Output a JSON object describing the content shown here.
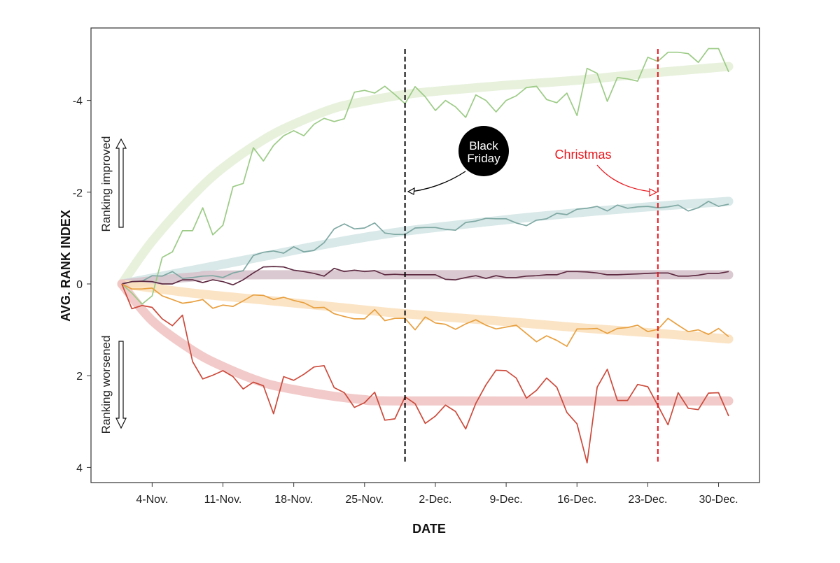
{
  "chart_data": {
    "type": "line",
    "xlabel": "DATE",
    "ylabel": "AVG. RANK INDEX",
    "ylim": [
      4.33,
      -5.58
    ],
    "y_inverted": true,
    "xlim": [
      "29-Oct",
      "2-Jan"
    ],
    "grid": false,
    "legend": "none",
    "yticks": [
      {
        "value": -4,
        "label": "-4"
      },
      {
        "value": -2,
        "label": "-2"
      },
      {
        "value": 0,
        "label": "0"
      },
      {
        "value": 2,
        "label": "2"
      },
      {
        "value": 4,
        "label": "4"
      }
    ],
    "xticks": [
      {
        "date": "4-Nov",
        "label": "4-Nov."
      },
      {
        "date": "11-Nov",
        "label": "11-Nov."
      },
      {
        "date": "18-Nov",
        "label": "18-Nov."
      },
      {
        "date": "25-Nov",
        "label": "25-Nov."
      },
      {
        "date": "2-Dec",
        "label": "2-Dec."
      },
      {
        "date": "9-Dec",
        "label": "9-Dec."
      },
      {
        "date": "16-Dec",
        "label": "16-Dec."
      },
      {
        "date": "23-Dec",
        "label": "23-Dec."
      },
      {
        "date": "30-Dec",
        "label": "30-Dec."
      }
    ],
    "x": [
      "1-Nov",
      "2-Nov",
      "3-Nov",
      "4-Nov",
      "5-Nov",
      "6-Nov",
      "7-Nov",
      "8-Nov",
      "9-Nov",
      "10-Nov",
      "11-Nov",
      "12-Nov",
      "13-Nov",
      "14-Nov",
      "15-Nov",
      "16-Nov",
      "17-Nov",
      "18-Nov",
      "19-Nov",
      "20-Nov",
      "21-Nov",
      "22-Nov",
      "23-Nov",
      "24-Nov",
      "25-Nov",
      "26-Nov",
      "27-Nov",
      "28-Nov",
      "29-Nov",
      "30-Nov",
      "1-Dec",
      "2-Dec",
      "3-Dec",
      "4-Dec",
      "5-Dec",
      "6-Dec",
      "7-Dec",
      "8-Dec",
      "9-Dec",
      "10-Dec",
      "11-Dec",
      "12-Dec",
      "13-Dec",
      "14-Dec",
      "15-Dec",
      "16-Dec",
      "17-Dec",
      "18-Dec",
      "19-Dec",
      "20-Dec",
      "21-Dec",
      "22-Dec",
      "23-Dec",
      "24-Dec",
      "25-Dec",
      "26-Dec",
      "27-Dec",
      "28-Dec",
      "29-Dec",
      "30-Dec",
      "31-Dec"
    ],
    "series": [
      {
        "color": "#9ccb86",
        "trend_color": "#e4efd8",
        "values": [
          0,
          0.2,
          0.44,
          0.26,
          -0.58,
          -0.7,
          -1.16,
          -1.16,
          -1.66,
          -1.07,
          -1.28,
          -2.12,
          -2.19,
          -2.97,
          -2.68,
          -3.02,
          -3.23,
          -3.34,
          -3.23,
          -3.48,
          -3.61,
          -3.54,
          -3.6,
          -4.18,
          -4.22,
          -4.16,
          -4.31,
          -4.13,
          -3.93,
          -4.3,
          -4.08,
          -3.78,
          -4.0,
          -3.86,
          -3.63,
          -4.12,
          -4.0,
          -3.75,
          -4.0,
          -4.1,
          -4.28,
          -4.31,
          -4.02,
          -3.95,
          -4.16,
          -3.67,
          -4.7,
          -4.59,
          -3.98,
          -4.5,
          -4.47,
          -4.42,
          -4.94,
          -4.85,
          -5.05,
          -5.05,
          -5.02,
          -4.83,
          -5.13,
          -5.13,
          -4.62
        ],
        "trend": [
          {
            "x": "1-Nov",
            "y": 0
          },
          {
            "x": "4-Nov",
            "y": -0.93
          },
          {
            "x": "8-Nov",
            "y": -1.92
          },
          {
            "x": "11-Nov",
            "y": -2.53
          },
          {
            "x": "15-Nov",
            "y": -3.14
          },
          {
            "x": "18-Nov",
            "y": -3.48
          },
          {
            "x": "22-Nov",
            "y": -3.83
          },
          {
            "x": "25-Nov",
            "y": -3.98
          },
          {
            "x": "29-Nov",
            "y": -4.13
          },
          {
            "x": "2-Dec",
            "y": -4.2
          },
          {
            "x": "9-Dec",
            "y": -4.33
          },
          {
            "x": "16-Dec",
            "y": -4.44
          },
          {
            "x": "23-Dec",
            "y": -4.59
          },
          {
            "x": "31-Dec",
            "y": -4.74
          }
        ]
      },
      {
        "color": "#7ea8a3",
        "trend_color": "#d5e6e6",
        "values": [
          0,
          -0.05,
          -0.06,
          -0.18,
          -0.17,
          -0.27,
          -0.12,
          -0.14,
          -0.17,
          -0.18,
          -0.14,
          -0.24,
          -0.29,
          -0.62,
          -0.69,
          -0.72,
          -0.67,
          -0.81,
          -0.7,
          -0.73,
          -0.9,
          -1.2,
          -1.31,
          -1.2,
          -1.22,
          -1.33,
          -1.11,
          -1.08,
          -1.08,
          -1.22,
          -1.23,
          -1.23,
          -1.19,
          -1.17,
          -1.34,
          -1.37,
          -1.43,
          -1.42,
          -1.42,
          -1.33,
          -1.27,
          -1.39,
          -1.42,
          -1.54,
          -1.51,
          -1.63,
          -1.65,
          -1.69,
          -1.59,
          -1.72,
          -1.65,
          -1.68,
          -1.69,
          -1.66,
          -1.68,
          -1.72,
          -1.59,
          -1.66,
          -1.8,
          -1.69,
          -1.74
        ],
        "trend": [
          {
            "x": "1-Nov",
            "y": 0
          },
          {
            "x": "8-Nov",
            "y": -0.3
          },
          {
            "x": "15-Nov",
            "y": -0.6
          },
          {
            "x": "22-Nov",
            "y": -0.9
          },
          {
            "x": "29-Nov",
            "y": -1.15
          },
          {
            "x": "9-Dec",
            "y": -1.4
          },
          {
            "x": "16-Dec",
            "y": -1.55
          },
          {
            "x": "23-Dec",
            "y": -1.68
          },
          {
            "x": "31-Dec",
            "y": -1.8
          }
        ]
      },
      {
        "color": "#5e2b42",
        "trend_color": "#d6c3cb",
        "values": [
          0,
          -0.05,
          -0.06,
          -0.05,
          0,
          0,
          -0.09,
          -0.09,
          -0.03,
          -0.09,
          -0.05,
          0.02,
          -0.09,
          -0.24,
          -0.37,
          -0.38,
          -0.37,
          -0.3,
          -0.27,
          -0.23,
          -0.17,
          -0.34,
          -0.27,
          -0.3,
          -0.27,
          -0.29,
          -0.2,
          -0.21,
          -0.2,
          -0.2,
          -0.2,
          -0.2,
          -0.1,
          -0.09,
          -0.14,
          -0.18,
          -0.12,
          -0.18,
          -0.14,
          -0.14,
          -0.17,
          -0.18,
          -0.2,
          -0.2,
          -0.27,
          -0.27,
          -0.26,
          -0.24,
          -0.2,
          -0.2,
          -0.21,
          -0.22,
          -0.23,
          -0.24,
          -0.24,
          -0.17,
          -0.17,
          -0.19,
          -0.23,
          -0.23,
          -0.27
        ],
        "trend": [
          {
            "x": "1-Nov",
            "y": 0
          },
          {
            "x": "8-Nov",
            "y": -0.15
          },
          {
            "x": "15-Nov",
            "y": -0.2
          },
          {
            "x": "31-Dec",
            "y": -0.2
          }
        ]
      },
      {
        "color": "#e8a040",
        "trend_color": "#fbe1bf",
        "values": [
          0,
          0.11,
          0.11,
          0.09,
          0.26,
          0.34,
          0.42,
          0.39,
          0.34,
          0.53,
          0.46,
          0.49,
          0.37,
          0.24,
          0.25,
          0.34,
          0.29,
          0.36,
          0.41,
          0.52,
          0.51,
          0.65,
          0.71,
          0.76,
          0.76,
          0.56,
          0.8,
          0.75,
          0.75,
          1.0,
          0.72,
          0.85,
          0.88,
          0.99,
          0.87,
          0.78,
          0.9,
          0.98,
          0.94,
          0.9,
          1.08,
          1.26,
          1.13,
          1.23,
          1.36,
          0.98,
          0.98,
          0.97,
          1.08,
          0.97,
          0.95,
          0.9,
          1.04,
          0.99,
          0.75,
          0.9,
          1.04,
          1.0,
          1.1,
          0.97,
          1.15
        ],
        "trend": [
          {
            "x": "1-Nov",
            "y": 0
          },
          {
            "x": "8-Nov",
            "y": 0.2
          },
          {
            "x": "15-Nov",
            "y": 0.35
          },
          {
            "x": "22-Nov",
            "y": 0.5
          },
          {
            "x": "29-Nov",
            "y": 0.65
          },
          {
            "x": "9-Dec",
            "y": 0.82
          },
          {
            "x": "16-Dec",
            "y": 0.95
          },
          {
            "x": "23-Dec",
            "y": 1.06
          },
          {
            "x": "31-Dec",
            "y": 1.2
          }
        ]
      },
      {
        "color": "#cc4a3b",
        "trend_color": "#efc4c3",
        "values": [
          0,
          0.54,
          0.47,
          0.51,
          0.76,
          0.91,
          0.68,
          1.69,
          2.07,
          1.99,
          1.89,
          2.02,
          2.29,
          2.14,
          2.22,
          2.83,
          2.02,
          2.1,
          1.97,
          1.81,
          1.78,
          2.26,
          2.37,
          2.69,
          2.59,
          2.36,
          2.97,
          2.94,
          2.46,
          2.61,
          3.04,
          2.88,
          2.64,
          2.78,
          3.16,
          2.6,
          2.2,
          1.88,
          1.89,
          2.05,
          2.49,
          2.32,
          2.05,
          2.25,
          2.8,
          3.05,
          3.9,
          2.25,
          1.86,
          2.54,
          2.54,
          2.19,
          2.24,
          2.65,
          3.07,
          2.37,
          2.71,
          2.74,
          2.38,
          2.37,
          2.88
        ],
        "trend": [
          {
            "x": "1-Nov",
            "y": 0
          },
          {
            "x": "4-Nov",
            "y": 0.8
          },
          {
            "x": "8-Nov",
            "y": 1.45
          },
          {
            "x": "11-Nov",
            "y": 1.8
          },
          {
            "x": "15-Nov",
            "y": 2.15
          },
          {
            "x": "18-Nov",
            "y": 2.3
          },
          {
            "x": "22-Nov",
            "y": 2.45
          },
          {
            "x": "25-Nov",
            "y": 2.52
          },
          {
            "x": "29-Nov",
            "y": 2.55
          },
          {
            "x": "31-Dec",
            "y": 2.55
          }
        ]
      }
    ],
    "annotations": [
      {
        "label": "Black Friday",
        "line1": "Black",
        "line2": "Friday",
        "date": "29-Nov",
        "color": "#000000",
        "style": "dashed",
        "arrow_y": -2.0
      },
      {
        "label": "Christmas",
        "date": "24-Dec",
        "color": "#e8191f",
        "style": "dashed",
        "arrow_y": -2.0
      }
    ],
    "side_labels": {
      "up": "Ranking improved",
      "down": "Ranking worsened"
    }
  }
}
